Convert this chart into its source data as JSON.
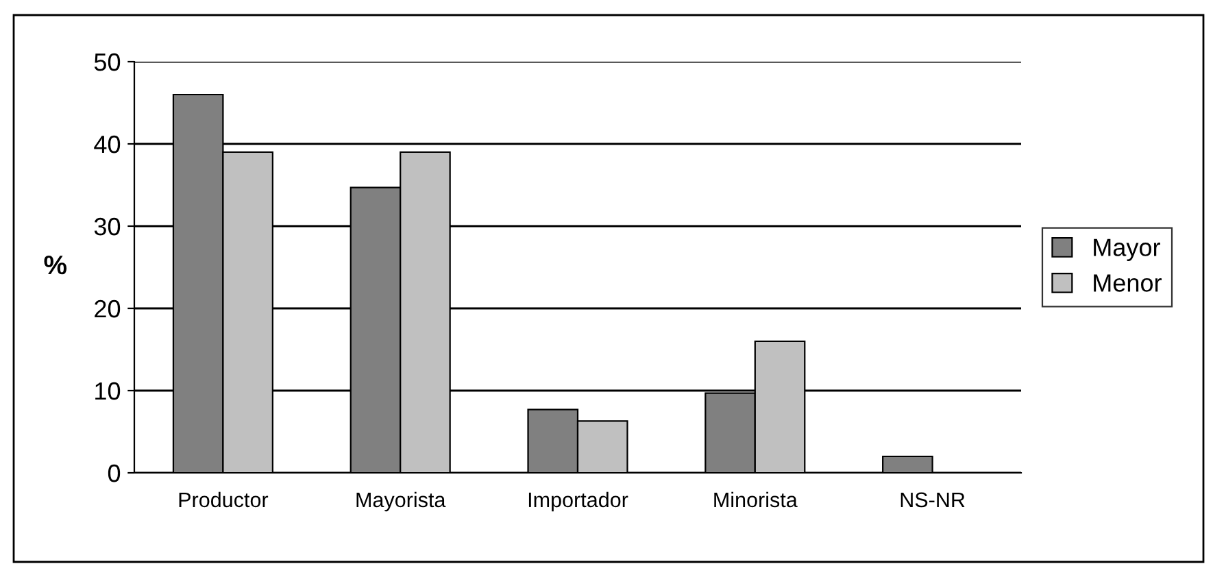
{
  "chart_data": {
    "type": "bar",
    "ylabel": "%",
    "categories": [
      "Productor",
      "Mayorista",
      "Importador",
      "Minorista",
      "NS-NR"
    ],
    "series": [
      {
        "name": "Mayor",
        "color": "#808080",
        "values": [
          46,
          34.7,
          7.7,
          9.7,
          2
        ]
      },
      {
        "name": "Menor",
        "color": "#c0c0c0",
        "values": [
          39,
          39,
          6.3,
          16,
          null
        ]
      }
    ],
    "ylim": [
      0,
      50
    ],
    "yticks": [
      0,
      10,
      20,
      30,
      40,
      50
    ],
    "grid": "y",
    "legend": "right"
  }
}
